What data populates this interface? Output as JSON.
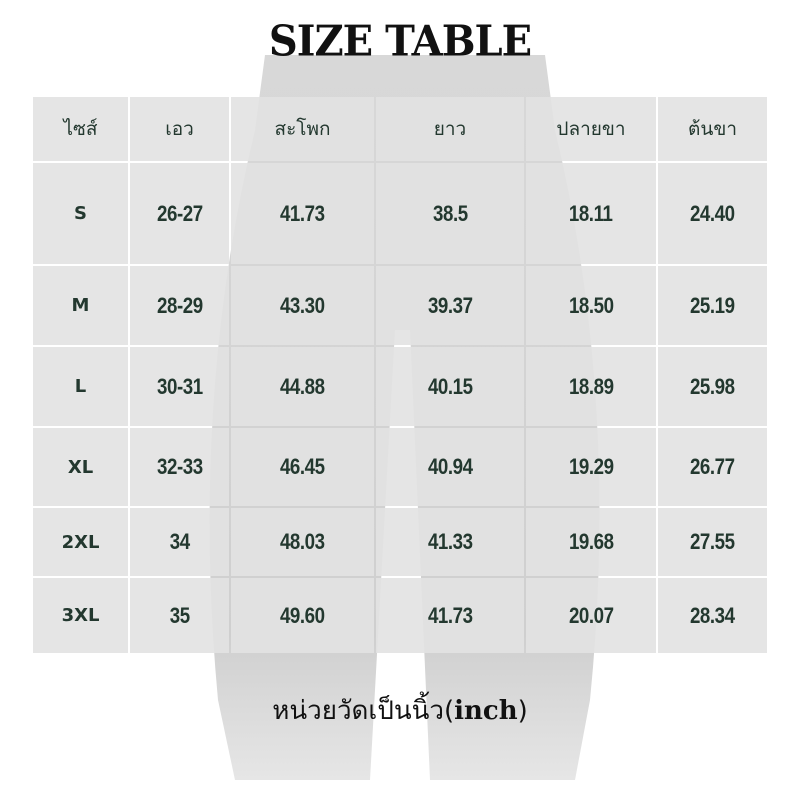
{
  "title": "SIZE TABLE",
  "table": {
    "headers": [
      "ไซส์",
      "เอว",
      "สะโพก",
      "ยาว",
      "ปลายขา",
      "ต้นขา"
    ],
    "rows": [
      [
        "S",
        "26-27",
        "41.73",
        "38.5",
        "18.11",
        "24.40"
      ],
      [
        "M",
        "28-29",
        "43.30",
        "39.37",
        "18.50",
        "25.19"
      ],
      [
        "L",
        "30-31",
        "44.88",
        "40.15",
        "18.89",
        "25.98"
      ],
      [
        "XL",
        "32-33",
        "46.45",
        "40.94",
        "19.29",
        "26.77"
      ],
      [
        "2XL",
        "34",
        "48.03",
        "41.33",
        "19.68",
        "27.55"
      ],
      [
        "3XL",
        "35",
        "49.60",
        "41.73",
        "20.07",
        "28.34"
      ]
    ]
  },
  "footer": {
    "text": "หน่วยวัดเป็นนิ้ว(",
    "unit": "inch",
    "close": ")"
  },
  "colors": {
    "text": "#23382f",
    "cell": "#e4e4e4"
  }
}
